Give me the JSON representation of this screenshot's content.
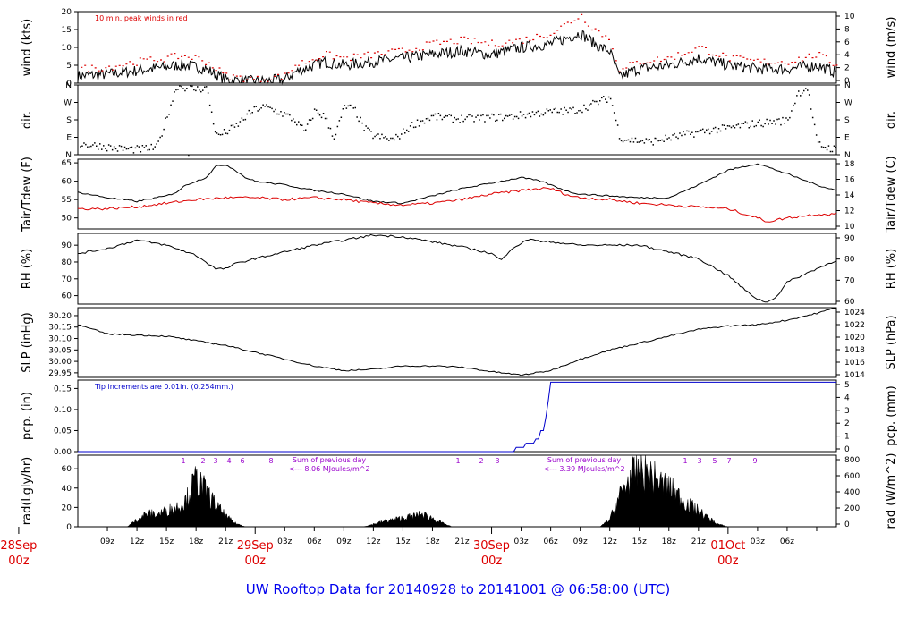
{
  "footer": "UW Rooftop Data for 20140928  to  20141001 @ 06:58:00  (UTC)",
  "colors": {
    "black": "#000000",
    "red": "#dd0000",
    "blue": "#0000cc",
    "purple": "#9900cc",
    "title": "#0000ee"
  },
  "chart_data": [
    {
      "type": "line",
      "ylabel": "wind (kts)",
      "ylabel_right": "wind (m/s)",
      "annotation": "10 min. peak winds in red",
      "yticks_left": [
        "0",
        "5",
        "10",
        "15",
        "20"
      ],
      "yticks_right": [
        "0",
        "2",
        "4",
        "6",
        "8",
        "10"
      ],
      "ylim": [
        0,
        20
      ],
      "series": [
        {
          "name": "",
          "color": "#000000",
          "x": [
            0,
            3,
            6,
            9,
            10,
            11,
            12,
            13,
            15,
            18,
            21,
            22,
            24,
            25,
            27,
            30,
            33,
            36,
            39,
            42,
            45,
            48,
            51,
            52,
            53,
            54,
            55,
            56,
            57,
            60,
            63,
            66,
            69,
            72,
            75,
            77
          ],
          "y": [
            2,
            2.5,
            3.5,
            4.5,
            5,
            5,
            4.5,
            4,
            1,
            0.5,
            1,
            3,
            5,
            6,
            5,
            6,
            7,
            8,
            9,
            8,
            10,
            11,
            14,
            12,
            10,
            9,
            1.5,
            3,
            4,
            5,
            7,
            5,
            4,
            4,
            5,
            3
          ]
        },
        {
          "name": "",
          "color": "#dd0000",
          "x": [
            0,
            3,
            6,
            9,
            10,
            11,
            12,
            13,
            15,
            18,
            21,
            22,
            24,
            25,
            27,
            30,
            33,
            36,
            39,
            42,
            45,
            48,
            51,
            52,
            53,
            54,
            55,
            56,
            57,
            60,
            63,
            66,
            69,
            72,
            75,
            77
          ],
          "y": [
            4,
            4.5,
            6,
            7,
            7.5,
            7.5,
            7,
            6,
            2,
            1,
            2,
            5,
            7,
            8,
            7,
            8,
            9,
            11,
            12,
            11,
            12,
            14,
            19,
            16,
            14,
            12,
            3,
            5,
            6,
            7,
            10,
            7,
            6,
            6,
            8,
            5
          ]
        }
      ]
    },
    {
      "type": "scatter",
      "ylabel": "dir.",
      "ylabel_right": "dir.",
      "yticks_left": [
        "N",
        "E",
        "S",
        "W",
        "N"
      ],
      "yticks_right": [
        "N",
        "E",
        "S",
        "W",
        "N"
      ],
      "ylim": [
        0,
        360
      ],
      "series": [
        {
          "name": "",
          "color": "#000000",
          "x": [
            0,
            2,
            4,
            6,
            8,
            10,
            11,
            12,
            13,
            14,
            15,
            16,
            17,
            18,
            19,
            20,
            21,
            22,
            23,
            24,
            25,
            26,
            27,
            28,
            29,
            30,
            32,
            34,
            36,
            38,
            40,
            42,
            44,
            46,
            48,
            50,
            51,
            52,
            53,
            54,
            55,
            56,
            58,
            60,
            62,
            64,
            66,
            68,
            70,
            72,
            73,
            74,
            75,
            76,
            77
          ],
          "y": [
            60,
            50,
            35,
            30,
            40,
            360,
            350,
            340,
            350,
            100,
            120,
            150,
            200,
            240,
            250,
            230,
            210,
            180,
            120,
            230,
            200,
            90,
            250,
            240,
            140,
            100,
            80,
            160,
            200,
            190,
            190,
            195,
            200,
            215,
            225,
            230,
            240,
            260,
            280,
            300,
            90,
            80,
            70,
            90,
            110,
            130,
            140,
            160,
            170,
            180,
            320,
            350,
            60,
            40,
            30
          ]
        }
      ]
    },
    {
      "type": "line",
      "ylabel": "Tair/Tdew (F)",
      "ylabel_right": "Tair/Tdew (C)",
      "yticks_left": [
        "50",
        "55",
        "60",
        "65"
      ],
      "yticks_right": [
        "10",
        "12",
        "14",
        "16",
        "18"
      ],
      "ylim": [
        47,
        66
      ],
      "series": [
        {
          "name": "",
          "color": "#000000",
          "x": [
            0,
            3,
            6,
            9,
            10,
            11,
            12,
            13,
            14,
            15,
            16,
            17,
            18,
            21,
            24,
            27,
            30,
            33,
            36,
            39,
            42,
            45,
            47,
            48,
            49,
            50,
            51,
            54,
            57,
            60,
            63,
            66,
            69,
            72,
            75,
            77
          ],
          "y": [
            57,
            55.5,
            54.5,
            56,
            57,
            59,
            60,
            61,
            64,
            64.5,
            63,
            61,
            60,
            59,
            57.5,
            56.5,
            54.5,
            54,
            56,
            58,
            59.5,
            61,
            60,
            59,
            58,
            57,
            56.5,
            56,
            55.5,
            55.5,
            59,
            63,
            64.8,
            62,
            59,
            57.5
          ]
        },
        {
          "name": "",
          "color": "#dd0000",
          "x": [
            0,
            3,
            6,
            9,
            12,
            15,
            18,
            21,
            24,
            27,
            30,
            33,
            36,
            39,
            42,
            45,
            47,
            48,
            50,
            51,
            54,
            57,
            60,
            63,
            66,
            69,
            70,
            72,
            75,
            77
          ],
          "y": [
            52.5,
            52.5,
            53,
            54,
            55,
            55.5,
            55.5,
            55,
            55.5,
            55,
            54,
            53.5,
            54,
            55,
            56.5,
            57.5,
            58,
            58,
            56,
            55.5,
            55,
            54,
            53.5,
            53,
            52.5,
            50,
            49,
            50,
            51,
            51
          ]
        }
      ]
    },
    {
      "type": "line",
      "ylabel": "RH (%)",
      "ylabel_right": "RH (%)",
      "yticks_left": [
        "60",
        "70",
        "80",
        "90"
      ],
      "yticks_right": [
        "60",
        "70",
        "80",
        "90"
      ],
      "ylim": [
        55,
        97
      ],
      "series": [
        {
          "name": "",
          "color": "#000000",
          "x": [
            0,
            3,
            6,
            9,
            11,
            12,
            13,
            14,
            15,
            16,
            18,
            21,
            24,
            27,
            30,
            33,
            36,
            39,
            42,
            43,
            44,
            45,
            46,
            47,
            48,
            51,
            54,
            57,
            60,
            63,
            66,
            68,
            69,
            70,
            71,
            72,
            75,
            77
          ],
          "y": [
            85,
            88,
            93,
            90,
            86,
            84,
            80,
            76,
            76,
            79,
            82,
            86,
            90,
            93,
            96,
            95,
            92,
            89,
            85,
            81,
            88,
            91,
            94,
            92,
            92,
            90,
            90,
            90,
            86,
            82,
            72,
            62,
            58,
            56,
            60,
            68,
            76,
            81
          ]
        }
      ]
    },
    {
      "type": "line",
      "ylabel": "SLP (inHg)",
      "ylabel_right": "SLP (hPa)",
      "yticks_left": [
        "29.95",
        "30.00",
        "30.05",
        "30.10",
        "30.15",
        "30.20"
      ],
      "yticks_right": [
        "1014",
        "1016",
        "1018",
        "1020",
        "1022",
        "1024"
      ],
      "ylim": [
        29.93,
        30.235
      ],
      "series": [
        {
          "name": "",
          "color": "#000000",
          "x": [
            0,
            3,
            6,
            9,
            12,
            15,
            18,
            21,
            24,
            27,
            30,
            33,
            36,
            39,
            42,
            45,
            48,
            51,
            54,
            57,
            60,
            63,
            66,
            69,
            72,
            75,
            77
          ],
          "y": [
            30.16,
            30.12,
            30.115,
            30.11,
            30.09,
            30.07,
            30.04,
            30.01,
            29.98,
            29.96,
            29.965,
            29.98,
            29.98,
            29.975,
            29.955,
            29.94,
            29.96,
            30.01,
            30.05,
            30.08,
            30.11,
            30.14,
            30.155,
            30.16,
            30.18,
            30.21,
            30.235
          ]
        }
      ]
    },
    {
      "type": "line",
      "ylabel": "pcp. (in)",
      "ylabel_right": "pcp. (mm)",
      "annotation": "Tip increments are 0.01in. (0.254mm.)",
      "yticks_left": [
        "0.00",
        "0.05",
        "0.10",
        "0.15"
      ],
      "yticks_right": [
        "0",
        "1",
        "2",
        "3",
        "4",
        "5"
      ],
      "ylim": [
        0,
        0.17
      ],
      "series": [
        {
          "name": "",
          "color": "#0000cc",
          "x": [
            0,
            44,
            44.5,
            45,
            45.5,
            46,
            46.5,
            47,
            47.3,
            47.6,
            48,
            77
          ],
          "y": [
            0,
            0,
            0.01,
            0.01,
            0.02,
            0.02,
            0.03,
            0.05,
            0.08,
            0.12,
            0.165,
            0.165
          ]
        }
      ]
    },
    {
      "type": "area",
      "ylabel": "rad(Lgly/hr)",
      "ylabel_right": "rad (W/m^2)",
      "yticks_left": [
        "0",
        "20",
        "40",
        "60"
      ],
      "yticks_right": [
        "0",
        "200",
        "400",
        "600",
        "800"
      ],
      "ylim": [
        0,
        74
      ],
      "daily_sums": [
        {
          "label": "Sum of previous day",
          "value": "<--- 8.06 MJoules/m^2"
        },
        {
          "label": "Sum of previous day",
          "value": "<--- 3.39 MJoules/m^2"
        }
      ],
      "markers_day1": [
        "1",
        "2",
        "3",
        "4",
        "6",
        "8"
      ],
      "markers_day2": [
        "1",
        "2",
        "3"
      ],
      "markers_day3": [
        "1",
        "3",
        "5",
        "7",
        "9"
      ],
      "series": [
        {
          "name": "",
          "color": "#000000",
          "x": [
            0,
            5,
            6,
            7,
            8,
            9,
            10,
            11,
            12,
            13,
            14,
            15,
            16,
            17,
            29,
            30,
            31,
            32,
            33,
            34,
            35,
            36,
            37,
            38,
            53,
            54,
            55,
            56,
            57,
            58,
            59,
            60,
            61,
            62,
            63,
            64,
            65,
            66,
            77
          ],
          "y": [
            0,
            0,
            8,
            15,
            14,
            18,
            22,
            30,
            55,
            40,
            25,
            12,
            4,
            0,
            0,
            3,
            6,
            8,
            10,
            12,
            14,
            10,
            4,
            0,
            0,
            8,
            35,
            55,
            65,
            60,
            50,
            45,
            35,
            25,
            18,
            10,
            3,
            0,
            0
          ]
        }
      ]
    }
  ],
  "xaxis": {
    "ticks": [
      "09z",
      "12z",
      "15z",
      "18z",
      "21z",
      "03z",
      "06z",
      "09z",
      "12z",
      "15z",
      "18z",
      "21z",
      "03z",
      "06z",
      "09z",
      "12z",
      "15z",
      "18z",
      "21z",
      "03z",
      "06z"
    ],
    "day_labels": [
      {
        "date": "28Sep",
        "hour": "00z"
      },
      {
        "date": "29Sep",
        "hour": "00z"
      },
      {
        "date": "30Sep",
        "hour": "00z"
      },
      {
        "date": "01Oct",
        "hour": "00z"
      }
    ]
  }
}
